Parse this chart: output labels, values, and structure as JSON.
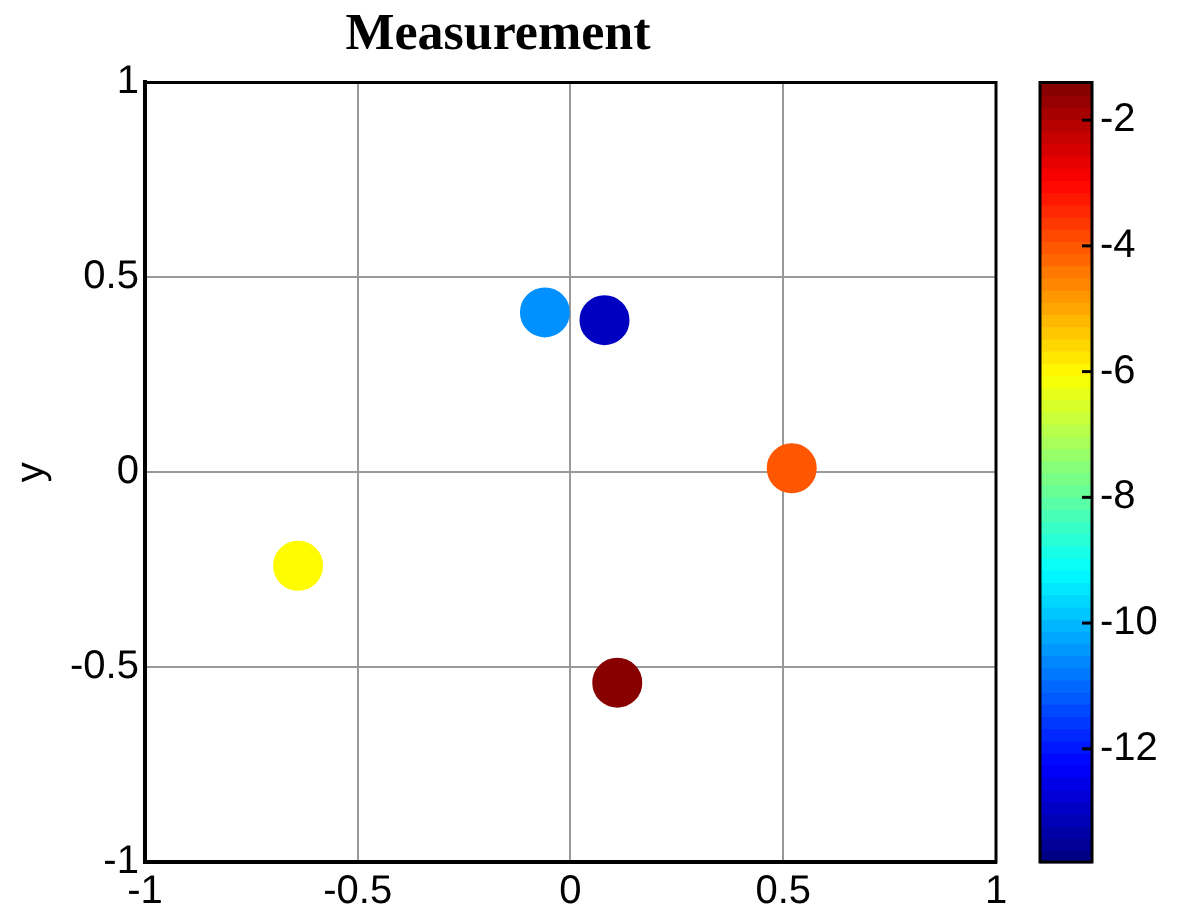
{
  "chart_data": {
    "type": "scatter",
    "title": "Measurement",
    "ylabel": "y",
    "x": [
      -0.06,
      0.08,
      0.52,
      -0.64,
      0.11
    ],
    "values": [
      0.41,
      0.39,
      0.01,
      -0.24,
      -0.54
    ],
    "cvalues": [
      -10.5,
      -13,
      -4,
      -6,
      -1.5
    ],
    "xlim": [
      -1,
      1
    ],
    "xticks": [
      -1,
      -0.5,
      0,
      0.5,
      1
    ],
    "ylim": [
      -1,
      1
    ],
    "yticks": [
      -1,
      -0.5,
      0,
      0.5,
      1
    ],
    "clim": [
      -13.8,
      -1.4
    ],
    "cticks": [
      -2,
      -4,
      -6,
      -8,
      -10,
      -12
    ],
    "grid": true,
    "marker": "circle"
  }
}
